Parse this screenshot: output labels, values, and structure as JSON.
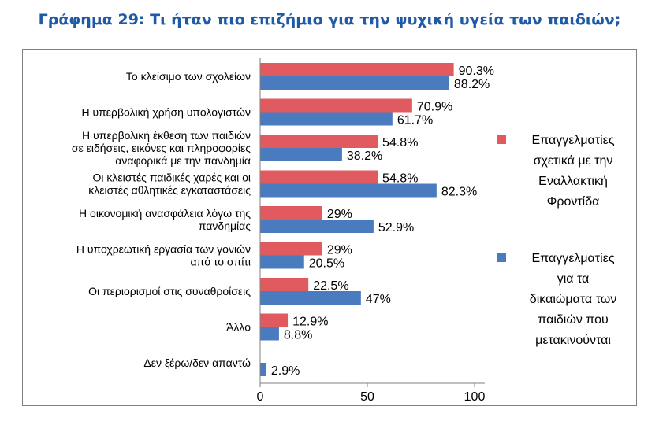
{
  "title": "Γράφημα 29: Τι ήταν πιο επιζήμιο για την ψυχική υγεία των παιδιών;",
  "chart_data": {
    "type": "bar",
    "orientation": "horizontal",
    "categories": [
      [
        "Το κλείσιμο των σχολείων"
      ],
      [
        "Η υπερβολική χρήση υπολογιστών"
      ],
      [
        "Η υπερβολική έκθεση των παιδιών",
        "σε ειδήσεις, εικόνες και πληροφορίες",
        "αναφορικά με την πανδημία"
      ],
      [
        "Οι κλειστές παιδικές χαρές και οι",
        "κλειστές αθλητικές εγκαταστάσεις"
      ],
      [
        "Η οικονομική ανασφάλεια λόγω της",
        "πανδημίας"
      ],
      [
        "Η υποχρεωτική εργασία των γονιών",
        "από το σπίτι"
      ],
      [
        "Οι περιορισμοί στις συναθροίσεις"
      ],
      [
        "Άλλο"
      ],
      [
        "Δεν ξέρω/δεν απαντώ"
      ]
    ],
    "series": [
      {
        "name": [
          "Επαγγελματίες",
          "σχετικά με την",
          "Εναλλακτική",
          "Φροντίδα"
        ],
        "color": "#e05a5f",
        "values": [
          90.3,
          70.9,
          54.8,
          54.8,
          29,
          29,
          22.5,
          12.9,
          null
        ],
        "labels": [
          "90.3%",
          "70.9%",
          "54.8%",
          "54.8%",
          "29%",
          "29%",
          "22.5%",
          "12.9%",
          ""
        ]
      },
      {
        "name": [
          "Επαγγελματίες",
          "για τα",
          "δικαιώματα των",
          "παιδιών που",
          "μετακινούνται"
        ],
        "color": "#4a7bbf",
        "values": [
          88.2,
          61.7,
          38.2,
          82.3,
          52.9,
          20.5,
          47,
          8.8,
          2.9
        ],
        "labels": [
          "88.2%",
          "61.7%",
          "38.2%",
          "82.3%",
          "52.9%",
          "20.5%",
          "47%",
          "8.8%",
          "2.9%"
        ]
      }
    ],
    "xlim": [
      0,
      100
    ],
    "xticks": [
      0,
      50,
      100
    ],
    "xtick_labels": [
      "0",
      "50",
      "100"
    ],
    "grid": false,
    "legend_position": "right"
  }
}
